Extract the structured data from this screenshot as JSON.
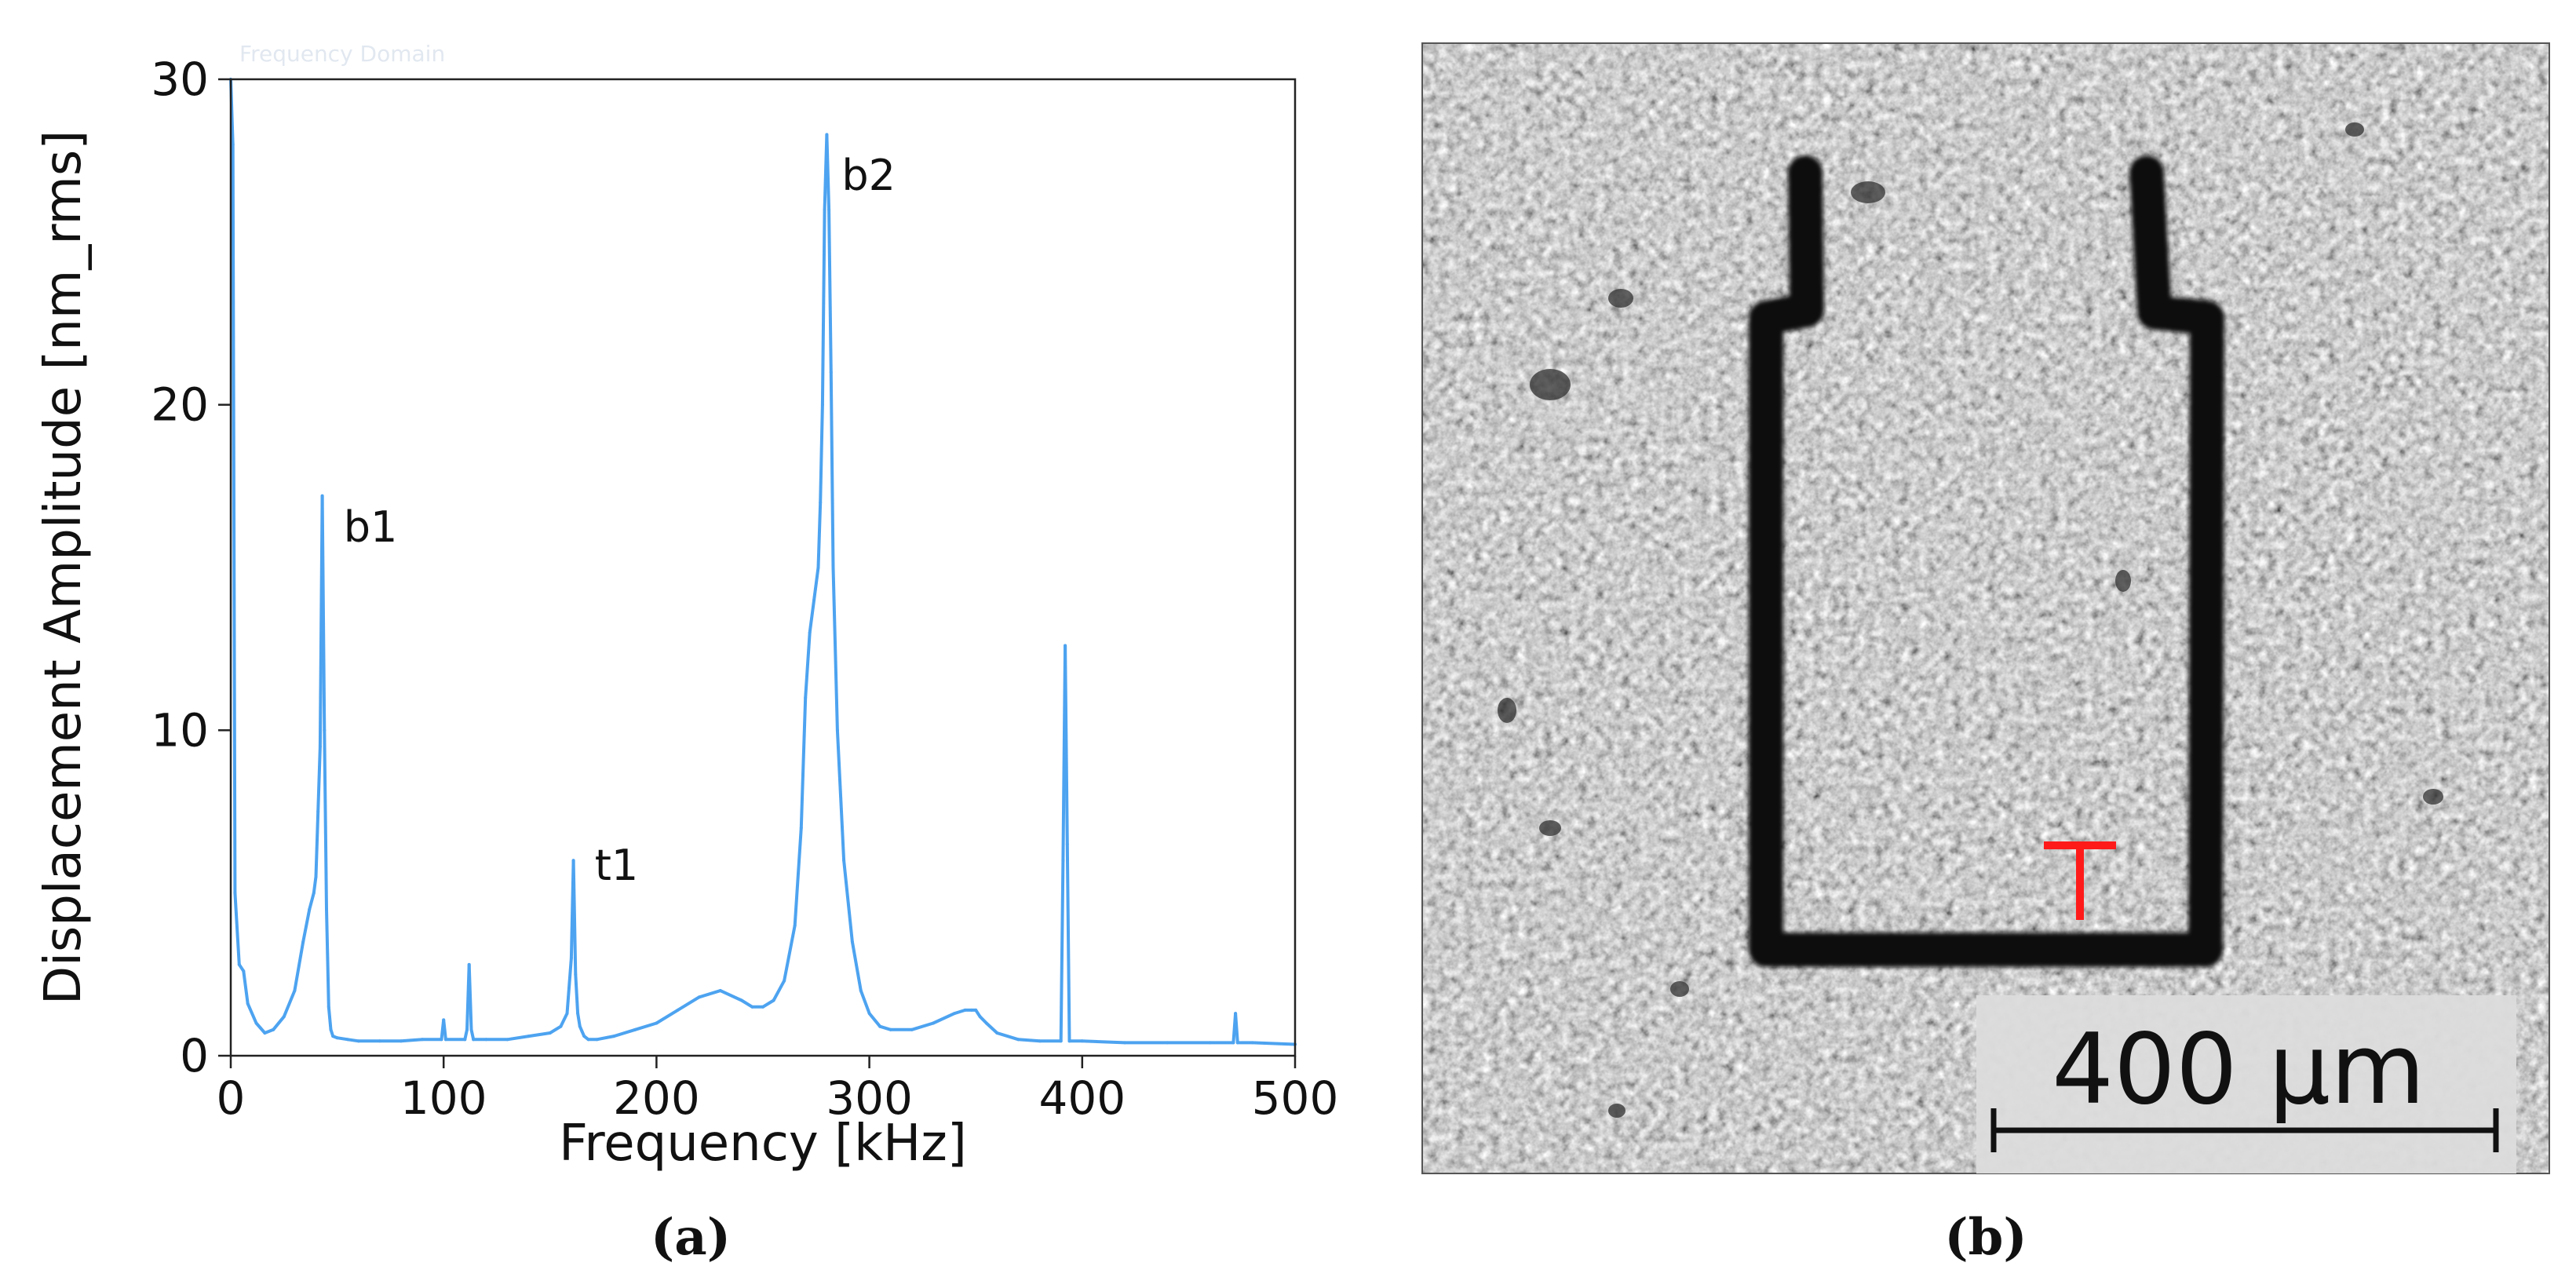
{
  "panel_a": {
    "caption": "(a)",
    "faint_title": "Frequency Domain"
  },
  "panel_b": {
    "caption": "(b)",
    "scale_bar_label": "400 µm"
  },
  "colors": {
    "spectrum": "#4da3f0",
    "marker": "#ff1a1a",
    "trace": "#0d0d0d"
  },
  "chart_data": {
    "type": "line",
    "xlabel": "Frequency [kHz]",
    "ylabel": "Displacement Amplitude [nm_rms]",
    "xlim": [
      0,
      500
    ],
    "ylim": [
      0,
      30
    ],
    "xticks": [
      "0",
      "100",
      "200",
      "300",
      "400",
      "500"
    ],
    "yticks": [
      "0",
      "10",
      "20",
      "30"
    ],
    "grid": false,
    "series": [
      {
        "x": [
          0,
          1,
          2,
          4,
          6,
          8,
          12,
          16,
          20,
          25,
          30,
          34,
          37,
          39,
          40,
          41,
          42,
          43,
          44,
          45,
          46,
          47,
          48,
          50,
          55,
          60,
          70,
          80,
          90,
          99,
          100,
          101,
          110,
          111,
          112,
          113,
          114,
          120,
          130,
          140,
          150,
          155,
          158,
          160,
          161,
          162,
          163,
          164,
          165,
          166,
          168,
          172,
          180,
          190,
          200,
          210,
          220,
          230,
          240,
          245,
          250,
          255,
          260,
          265,
          268,
          270,
          272,
          274,
          276,
          277,
          278,
          279,
          280,
          281,
          282,
          283,
          285,
          288,
          292,
          296,
          300,
          305,
          310,
          320,
          330,
          340,
          345,
          348,
          350,
          352,
          355,
          360,
          370,
          380,
          390,
          391,
          392,
          393,
          394,
          400,
          420,
          440,
          460,
          471,
          472,
          473,
          480,
          500
        ],
        "y": [
          30,
          28,
          5,
          2.8,
          2.6,
          1.6,
          1.0,
          0.7,
          0.8,
          1.2,
          2.0,
          3.5,
          4.5,
          5.0,
          5.5,
          7.5,
          9.5,
          17.2,
          10,
          4.5,
          1.5,
          0.8,
          0.6,
          0.55,
          0.5,
          0.45,
          0.45,
          0.45,
          0.5,
          0.5,
          1.1,
          0.5,
          0.5,
          0.8,
          2.8,
          0.8,
          0.5,
          0.5,
          0.5,
          0.6,
          0.7,
          0.9,
          1.3,
          3.0,
          6.0,
          2.5,
          1.3,
          0.9,
          0.75,
          0.6,
          0.5,
          0.5,
          0.6,
          0.8,
          1.0,
          1.4,
          1.8,
          2.0,
          1.7,
          1.5,
          1.5,
          1.7,
          2.3,
          4.0,
          7.0,
          11.0,
          13.0,
          14.0,
          15.0,
          17.0,
          20.0,
          26.0,
          28.3,
          26.0,
          21.0,
          15.0,
          10.0,
          6.0,
          3.5,
          2.0,
          1.3,
          0.9,
          0.8,
          0.8,
          1.0,
          1.3,
          1.4,
          1.4,
          1.4,
          1.2,
          1.0,
          0.7,
          0.5,
          0.45,
          0.45,
          6.0,
          12.6,
          6.5,
          0.45,
          0.45,
          0.4,
          0.4,
          0.4,
          0.4,
          1.3,
          0.4,
          0.4,
          0.35
        ]
      }
    ],
    "annotations": [
      {
        "text": "b1",
        "x": 53,
        "y": 15.8
      },
      {
        "text": "t1",
        "x": 171,
        "y": 5.4
      },
      {
        "text": "b2",
        "x": 287,
        "y": 26.6
      }
    ]
  }
}
